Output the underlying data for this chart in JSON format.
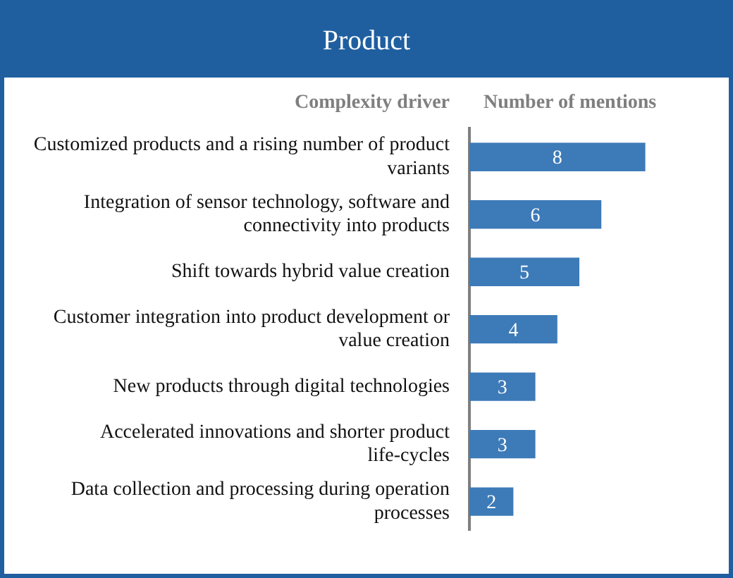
{
  "chart_data": {
    "type": "bar",
    "orientation": "horizontal",
    "title": "Product",
    "ylabel": "Complexity driver",
    "xlabel": "Number of mentions",
    "categories": [
      "Customized products and a rising number of product variants",
      "Integration of sensor technology, software and connectivity into products",
      "Shift towards hybrid value creation",
      "Customer integration into product development or value creation",
      "New products through digital technologies",
      "Accelerated innovations and shorter product life-cycles",
      "Data collection and processing during operation processes"
    ],
    "values": [
      8,
      6,
      5,
      4,
      3,
      3,
      2
    ],
    "color": "#3d7ab8",
    "data_labels": true,
    "grid": false,
    "legend": false
  }
}
